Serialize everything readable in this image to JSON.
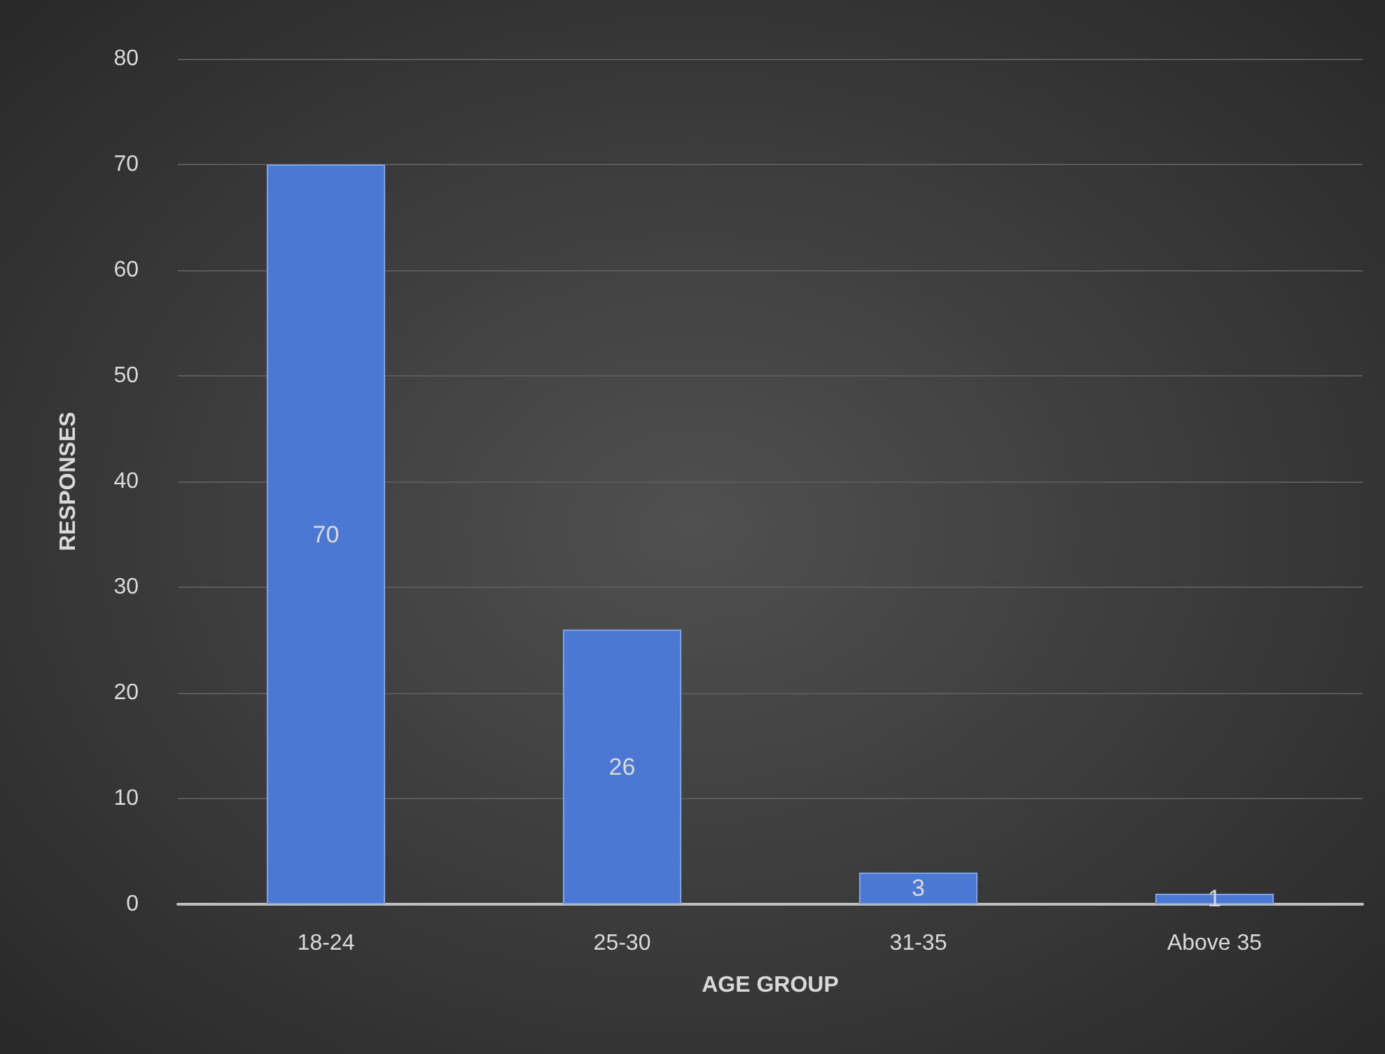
{
  "chart_data": {
    "type": "bar",
    "xlabel": "AGE GROUP",
    "ylabel": "RESPONSES",
    "categories": [
      "18-24",
      "25-30",
      "31-35",
      "Above 35"
    ],
    "values": [
      70,
      26,
      3,
      1
    ],
    "color": "#4a78d2",
    "ylim": [
      0,
      80
    ],
    "yticks": [
      0,
      10,
      20,
      30,
      40,
      50,
      60,
      70,
      80
    ],
    "grid": "y",
    "data_labels": true
  }
}
